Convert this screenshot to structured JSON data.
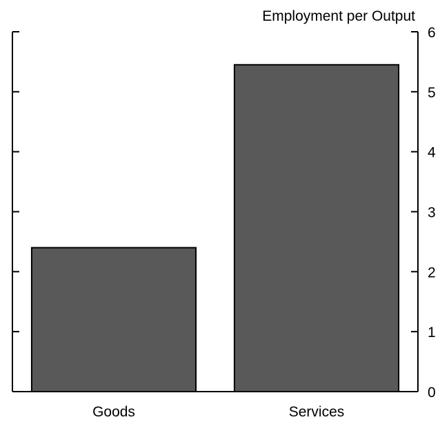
{
  "chart_data": {
    "type": "bar",
    "title": "Employment per Output",
    "xlabel": "",
    "ylabel": "",
    "categories": [
      "Goods",
      "Services"
    ],
    "values": [
      2.4,
      5.45
    ],
    "ylim": [
      0,
      6
    ],
    "yticks": [
      0,
      1,
      2,
      3,
      4,
      5,
      6
    ],
    "ytick_labels": [
      "0",
      "1",
      "2",
      "3",
      "4",
      "5",
      "6"
    ],
    "bar_color": "#595959",
    "grid": false,
    "legend": "none",
    "axes": "left and right (labels on right)"
  }
}
